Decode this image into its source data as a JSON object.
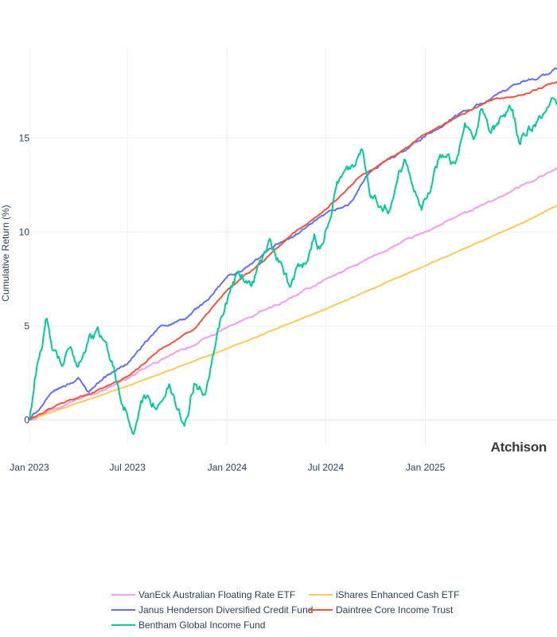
{
  "chart_data": {
    "type": "line",
    "title": "",
    "xlabel": "",
    "ylabel": "Cumulative Return (%)",
    "watermark": "Atchison",
    "x_ticks": [
      "Jan 2023",
      "Jul 2023",
      "Jan 2024",
      "Jul 2024",
      "Jan 2025"
    ],
    "y_ticks": [
      0,
      5,
      10,
      15
    ],
    "xlim": [
      "2023-01-01",
      "2025-09-01"
    ],
    "ylim": [
      -1.3,
      19.8
    ],
    "grid": true,
    "legend_position": "bottom",
    "series": [
      {
        "name": "VanEck Australian Floating Rate ETF",
        "color": "#f59df5",
        "noise": 0.08,
        "points": [
          [
            "2023-01-01",
            0
          ],
          [
            "2023-03-01",
            0.8
          ],
          [
            "2023-05-01",
            1.4
          ],
          [
            "2023-07-01",
            2.2
          ],
          [
            "2023-09-01",
            3.2
          ],
          [
            "2023-11-01",
            4.0
          ],
          [
            "2024-01-01",
            4.9
          ],
          [
            "2024-03-01",
            5.7
          ],
          [
            "2024-05-01",
            6.5
          ],
          [
            "2024-07-01",
            7.5
          ],
          [
            "2024-09-01",
            8.3
          ],
          [
            "2024-11-01",
            9.2
          ],
          [
            "2025-01-01",
            10.0
          ],
          [
            "2025-03-01",
            10.8
          ],
          [
            "2025-05-01",
            11.6
          ],
          [
            "2025-07-01",
            12.5
          ],
          [
            "2025-09-01",
            13.4
          ]
        ]
      },
      {
        "name": "iShares Enhanced Cash ETF",
        "color": "#fecb52",
        "noise": 0.02,
        "points": [
          [
            "2023-01-01",
            0
          ],
          [
            "2023-07-01",
            1.8
          ],
          [
            "2024-01-01",
            3.8
          ],
          [
            "2024-07-01",
            5.9
          ],
          [
            "2025-01-01",
            8.2
          ],
          [
            "2025-07-01",
            10.5
          ],
          [
            "2025-09-01",
            11.4
          ]
        ]
      },
      {
        "name": "Janus Henderson Diversified Credit Fund",
        "color": "#636efa",
        "noise": 0.1,
        "points": [
          [
            "2023-01-01",
            0
          ],
          [
            "2023-02-15",
            1.5
          ],
          [
            "2023-04-01",
            2.2
          ],
          [
            "2023-04-20",
            1.5
          ],
          [
            "2023-05-15",
            2.2
          ],
          [
            "2023-07-01",
            3.0
          ],
          [
            "2023-09-01",
            5.0
          ],
          [
            "2023-10-15",
            5.3
          ],
          [
            "2023-11-01",
            5.8
          ],
          [
            "2023-12-01",
            6.5
          ],
          [
            "2024-01-01",
            7.6
          ],
          [
            "2024-02-01",
            8.0
          ],
          [
            "2024-03-01",
            8.6
          ],
          [
            "2024-04-01",
            9.4
          ],
          [
            "2024-05-01",
            9.7
          ],
          [
            "2024-07-01",
            10.9
          ],
          [
            "2024-08-15",
            11.5
          ],
          [
            "2024-09-15",
            13.0
          ],
          [
            "2024-11-01",
            14.0
          ],
          [
            "2025-01-01",
            15.1
          ],
          [
            "2025-03-01",
            16.2
          ],
          [
            "2025-05-01",
            17.1
          ],
          [
            "2025-07-01",
            18.0
          ],
          [
            "2025-08-15",
            18.4
          ],
          [
            "2025-09-01",
            18.7
          ]
        ]
      },
      {
        "name": "Daintree Core Income Trust",
        "color": "#ef553b",
        "noise": 0.06,
        "points": [
          [
            "2023-01-01",
            0
          ],
          [
            "2023-03-01",
            0.9
          ],
          [
            "2023-05-01",
            1.5
          ],
          [
            "2023-07-01",
            2.3
          ],
          [
            "2023-09-01",
            3.8
          ],
          [
            "2023-11-01",
            4.8
          ],
          [
            "2024-01-01",
            6.9
          ],
          [
            "2024-03-01",
            8.3
          ],
          [
            "2024-05-01",
            9.9
          ],
          [
            "2024-07-01",
            11.2
          ],
          [
            "2024-09-01",
            12.9
          ],
          [
            "2024-11-01",
            14.0
          ],
          [
            "2025-01-01",
            15.2
          ],
          [
            "2025-03-01",
            16.1
          ],
          [
            "2025-05-01",
            17.0
          ],
          [
            "2025-07-01",
            17.3
          ],
          [
            "2025-09-01",
            18.0
          ]
        ]
      },
      {
        "name": "Bentham Global Income Fund",
        "color": "#00cc96",
        "noise": 0.45,
        "points": [
          [
            "2023-01-01",
            0
          ],
          [
            "2023-01-15",
            3.0
          ],
          [
            "2023-02-01",
            5.2
          ],
          [
            "2023-02-10",
            3.8
          ],
          [
            "2023-03-01",
            2.8
          ],
          [
            "2023-03-15",
            3.6
          ],
          [
            "2023-04-01",
            3.0
          ],
          [
            "2023-04-20",
            4.4
          ],
          [
            "2023-05-15",
            4.5
          ],
          [
            "2023-06-01",
            3.2
          ],
          [
            "2023-06-15",
            1.8
          ],
          [
            "2023-07-01",
            0.5
          ],
          [
            "2023-07-10",
            -1.0
          ],
          [
            "2023-08-01",
            1.2
          ],
          [
            "2023-09-01",
            0.8
          ],
          [
            "2023-09-15",
            1.9
          ],
          [
            "2023-10-01",
            0.7
          ],
          [
            "2023-10-15",
            -0.2
          ],
          [
            "2023-11-01",
            2.0
          ],
          [
            "2023-11-20",
            1.5
          ],
          [
            "2023-12-10",
            4.5
          ],
          [
            "2024-01-01",
            6.5
          ],
          [
            "2024-01-20",
            8.0
          ],
          [
            "2024-02-15",
            7.3
          ],
          [
            "2024-03-01",
            8.3
          ],
          [
            "2024-03-20",
            9.3
          ],
          [
            "2024-04-10",
            8.0
          ],
          [
            "2024-04-25",
            7.0
          ],
          [
            "2024-05-10",
            8.2
          ],
          [
            "2024-05-25",
            8.6
          ],
          [
            "2024-06-10",
            9.8
          ],
          [
            "2024-06-25",
            9.0
          ],
          [
            "2024-07-01",
            10.0
          ],
          [
            "2024-07-20",
            12.5
          ],
          [
            "2024-08-05",
            13.5
          ],
          [
            "2024-08-20",
            13.2
          ],
          [
            "2024-09-05",
            14.7
          ],
          [
            "2024-09-20",
            12.5
          ],
          [
            "2024-10-05",
            11.8
          ],
          [
            "2024-10-25",
            11.3
          ],
          [
            "2024-11-10",
            12.9
          ],
          [
            "2024-11-25",
            14.0
          ],
          [
            "2024-12-10",
            12.8
          ],
          [
            "2024-12-25",
            11.7
          ],
          [
            "2025-01-10",
            12.3
          ],
          [
            "2025-01-25",
            13.8
          ],
          [
            "2025-02-10",
            14.5
          ],
          [
            "2025-02-25",
            13.6
          ],
          [
            "2025-03-15",
            15.4
          ],
          [
            "2025-04-01",
            14.5
          ],
          [
            "2025-04-15",
            16.5
          ],
          [
            "2025-05-01",
            14.8
          ],
          [
            "2025-05-20",
            15.8
          ],
          [
            "2025-06-10",
            16.5
          ],
          [
            "2025-06-25",
            14.5
          ],
          [
            "2025-07-10",
            15.5
          ],
          [
            "2025-08-01",
            15.8
          ],
          [
            "2025-08-20",
            16.8
          ],
          [
            "2025-09-01",
            16.9
          ]
        ]
      }
    ]
  }
}
